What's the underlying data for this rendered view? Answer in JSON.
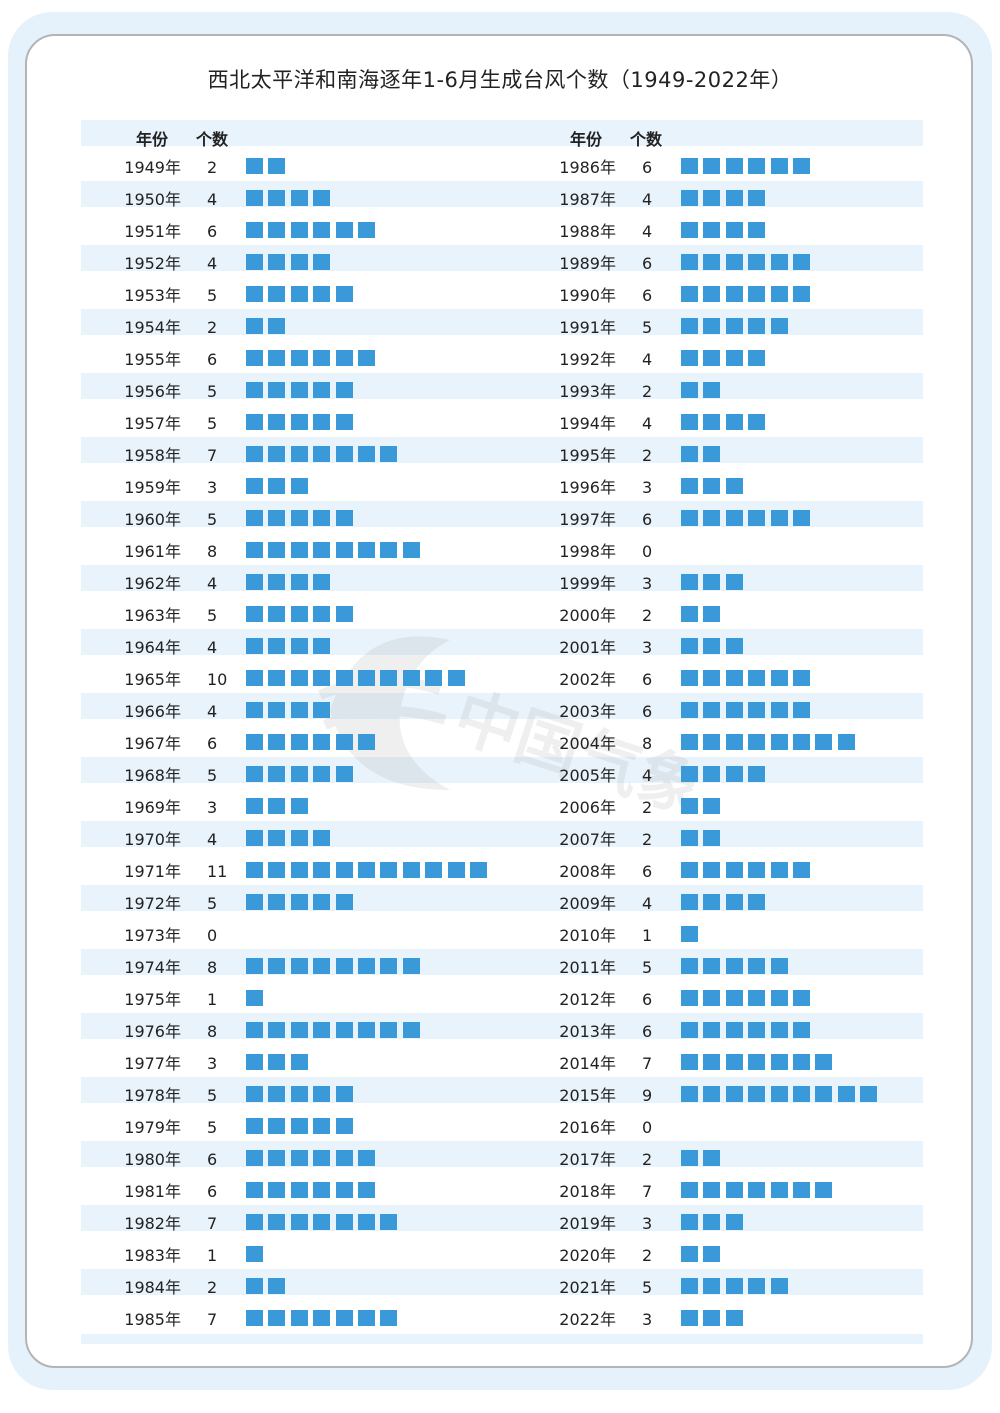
{
  "title": "西北太平洋和南海逐年1-6月生成台风个数（1949-2022年）",
  "header": {
    "year_label": "年份",
    "count_label": "个数"
  },
  "watermark_text": "中国气象",
  "colors": {
    "bar": "#3a9ad9",
    "stripe": "#e8f3fb",
    "background": "#e5f2fb"
  },
  "chart_data": {
    "type": "bar",
    "title": "西北太平洋和南海逐年1-6月生成台风个数（1949-2022年）",
    "xlabel": "年份",
    "ylabel": "个数",
    "rows": [
      {
        "year": "1949年",
        "count": 2
      },
      {
        "year": "1950年",
        "count": 4
      },
      {
        "year": "1951年",
        "count": 6
      },
      {
        "year": "1952年",
        "count": 4
      },
      {
        "year": "1953年",
        "count": 5
      },
      {
        "year": "1954年",
        "count": 2
      },
      {
        "year": "1955年",
        "count": 6
      },
      {
        "year": "1956年",
        "count": 5
      },
      {
        "year": "1957年",
        "count": 5
      },
      {
        "year": "1958年",
        "count": 7
      },
      {
        "year": "1959年",
        "count": 3
      },
      {
        "year": "1960年",
        "count": 5
      },
      {
        "year": "1961年",
        "count": 8
      },
      {
        "year": "1962年",
        "count": 4
      },
      {
        "year": "1963年",
        "count": 5
      },
      {
        "year": "1964年",
        "count": 4
      },
      {
        "year": "1965年",
        "count": 10
      },
      {
        "year": "1966年",
        "count": 4
      },
      {
        "year": "1967年",
        "count": 6
      },
      {
        "year": "1968年",
        "count": 5
      },
      {
        "year": "1969年",
        "count": 3
      },
      {
        "year": "1970年",
        "count": 4
      },
      {
        "year": "1971年",
        "count": 11
      },
      {
        "year": "1972年",
        "count": 5
      },
      {
        "year": "1973年",
        "count": 0
      },
      {
        "year": "1974年",
        "count": 8
      },
      {
        "year": "1975年",
        "count": 1
      },
      {
        "year": "1976年",
        "count": 8
      },
      {
        "year": "1977年",
        "count": 3
      },
      {
        "year": "1978年",
        "count": 5
      },
      {
        "year": "1979年",
        "count": 5
      },
      {
        "year": "1980年",
        "count": 6
      },
      {
        "year": "1981年",
        "count": 6
      },
      {
        "year": "1982年",
        "count": 7
      },
      {
        "year": "1983年",
        "count": 1
      },
      {
        "year": "1984年",
        "count": 2
      },
      {
        "year": "1985年",
        "count": 7
      },
      {
        "year": "1986年",
        "count": 6
      },
      {
        "year": "1987年",
        "count": 4
      },
      {
        "year": "1988年",
        "count": 4
      },
      {
        "year": "1989年",
        "count": 6
      },
      {
        "year": "1990年",
        "count": 6
      },
      {
        "year": "1991年",
        "count": 5
      },
      {
        "year": "1992年",
        "count": 4
      },
      {
        "year": "1993年",
        "count": 2
      },
      {
        "year": "1994年",
        "count": 4
      },
      {
        "year": "1995年",
        "count": 2
      },
      {
        "year": "1996年",
        "count": 3
      },
      {
        "year": "1997年",
        "count": 6
      },
      {
        "year": "1998年",
        "count": 0
      },
      {
        "year": "1999年",
        "count": 3
      },
      {
        "year": "2000年",
        "count": 2
      },
      {
        "year": "2001年",
        "count": 3
      },
      {
        "year": "2002年",
        "count": 6
      },
      {
        "year": "2003年",
        "count": 6
      },
      {
        "year": "2004年",
        "count": 8
      },
      {
        "year": "2005年",
        "count": 4
      },
      {
        "year": "2006年",
        "count": 2
      },
      {
        "year": "2007年",
        "count": 2
      },
      {
        "year": "2008年",
        "count": 6
      },
      {
        "year": "2009年",
        "count": 4
      },
      {
        "year": "2010年",
        "count": 1
      },
      {
        "year": "2011年",
        "count": 5
      },
      {
        "year": "2012年",
        "count": 6
      },
      {
        "year": "2013年",
        "count": 6
      },
      {
        "year": "2014年",
        "count": 7
      },
      {
        "year": "2015年",
        "count": 9
      },
      {
        "year": "2016年",
        "count": 0
      },
      {
        "year": "2017年",
        "count": 2
      },
      {
        "year": "2018年",
        "count": 7
      },
      {
        "year": "2019年",
        "count": 3
      },
      {
        "year": "2020年",
        "count": 2
      },
      {
        "year": "2021年",
        "count": 5
      },
      {
        "year": "2022年",
        "count": 3
      }
    ]
  }
}
